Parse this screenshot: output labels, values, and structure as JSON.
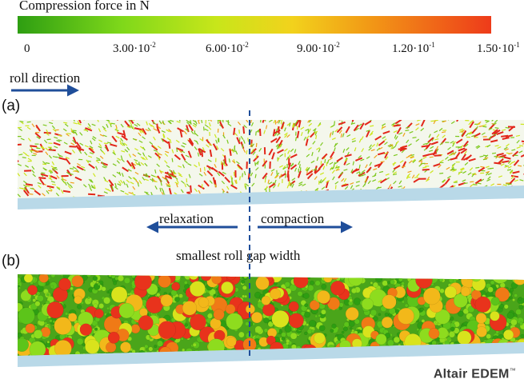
{
  "legend": {
    "title": "Compression force in N",
    "ticks": [
      {
        "mant": "0",
        "exp": ""
      },
      {
        "mant": "3.00·10",
        "exp": "-2"
      },
      {
        "mant": "6.00·10",
        "exp": "-2"
      },
      {
        "mant": "9.00·10",
        "exp": "-2"
      },
      {
        "mant": "1.20·10",
        "exp": "-1"
      },
      {
        "mant": "1.50·10",
        "exp": "-1"
      }
    ],
    "gradient_colors": [
      "#2e9e12",
      "#7fd81a",
      "#c8e61a",
      "#f2d21c",
      "#f29a16",
      "#ee3b1a"
    ]
  },
  "labels": {
    "roll_direction": "roll direction",
    "panel_a": "(a)",
    "panel_b": "(b)",
    "relaxation": "relaxation",
    "compaction": "compaction",
    "gap": "smallest roll gap width"
  },
  "brand": {
    "name": "Altair EDEM",
    "tm": "™"
  },
  "colors": {
    "arrow_blue": "#1f4e9a",
    "plate": "#b9d9e8",
    "particle_palette": [
      "#2e9e12",
      "#5cc41a",
      "#8edc1e",
      "#d9e31c",
      "#f2b81a",
      "#f07a16",
      "#e8331c"
    ]
  }
}
